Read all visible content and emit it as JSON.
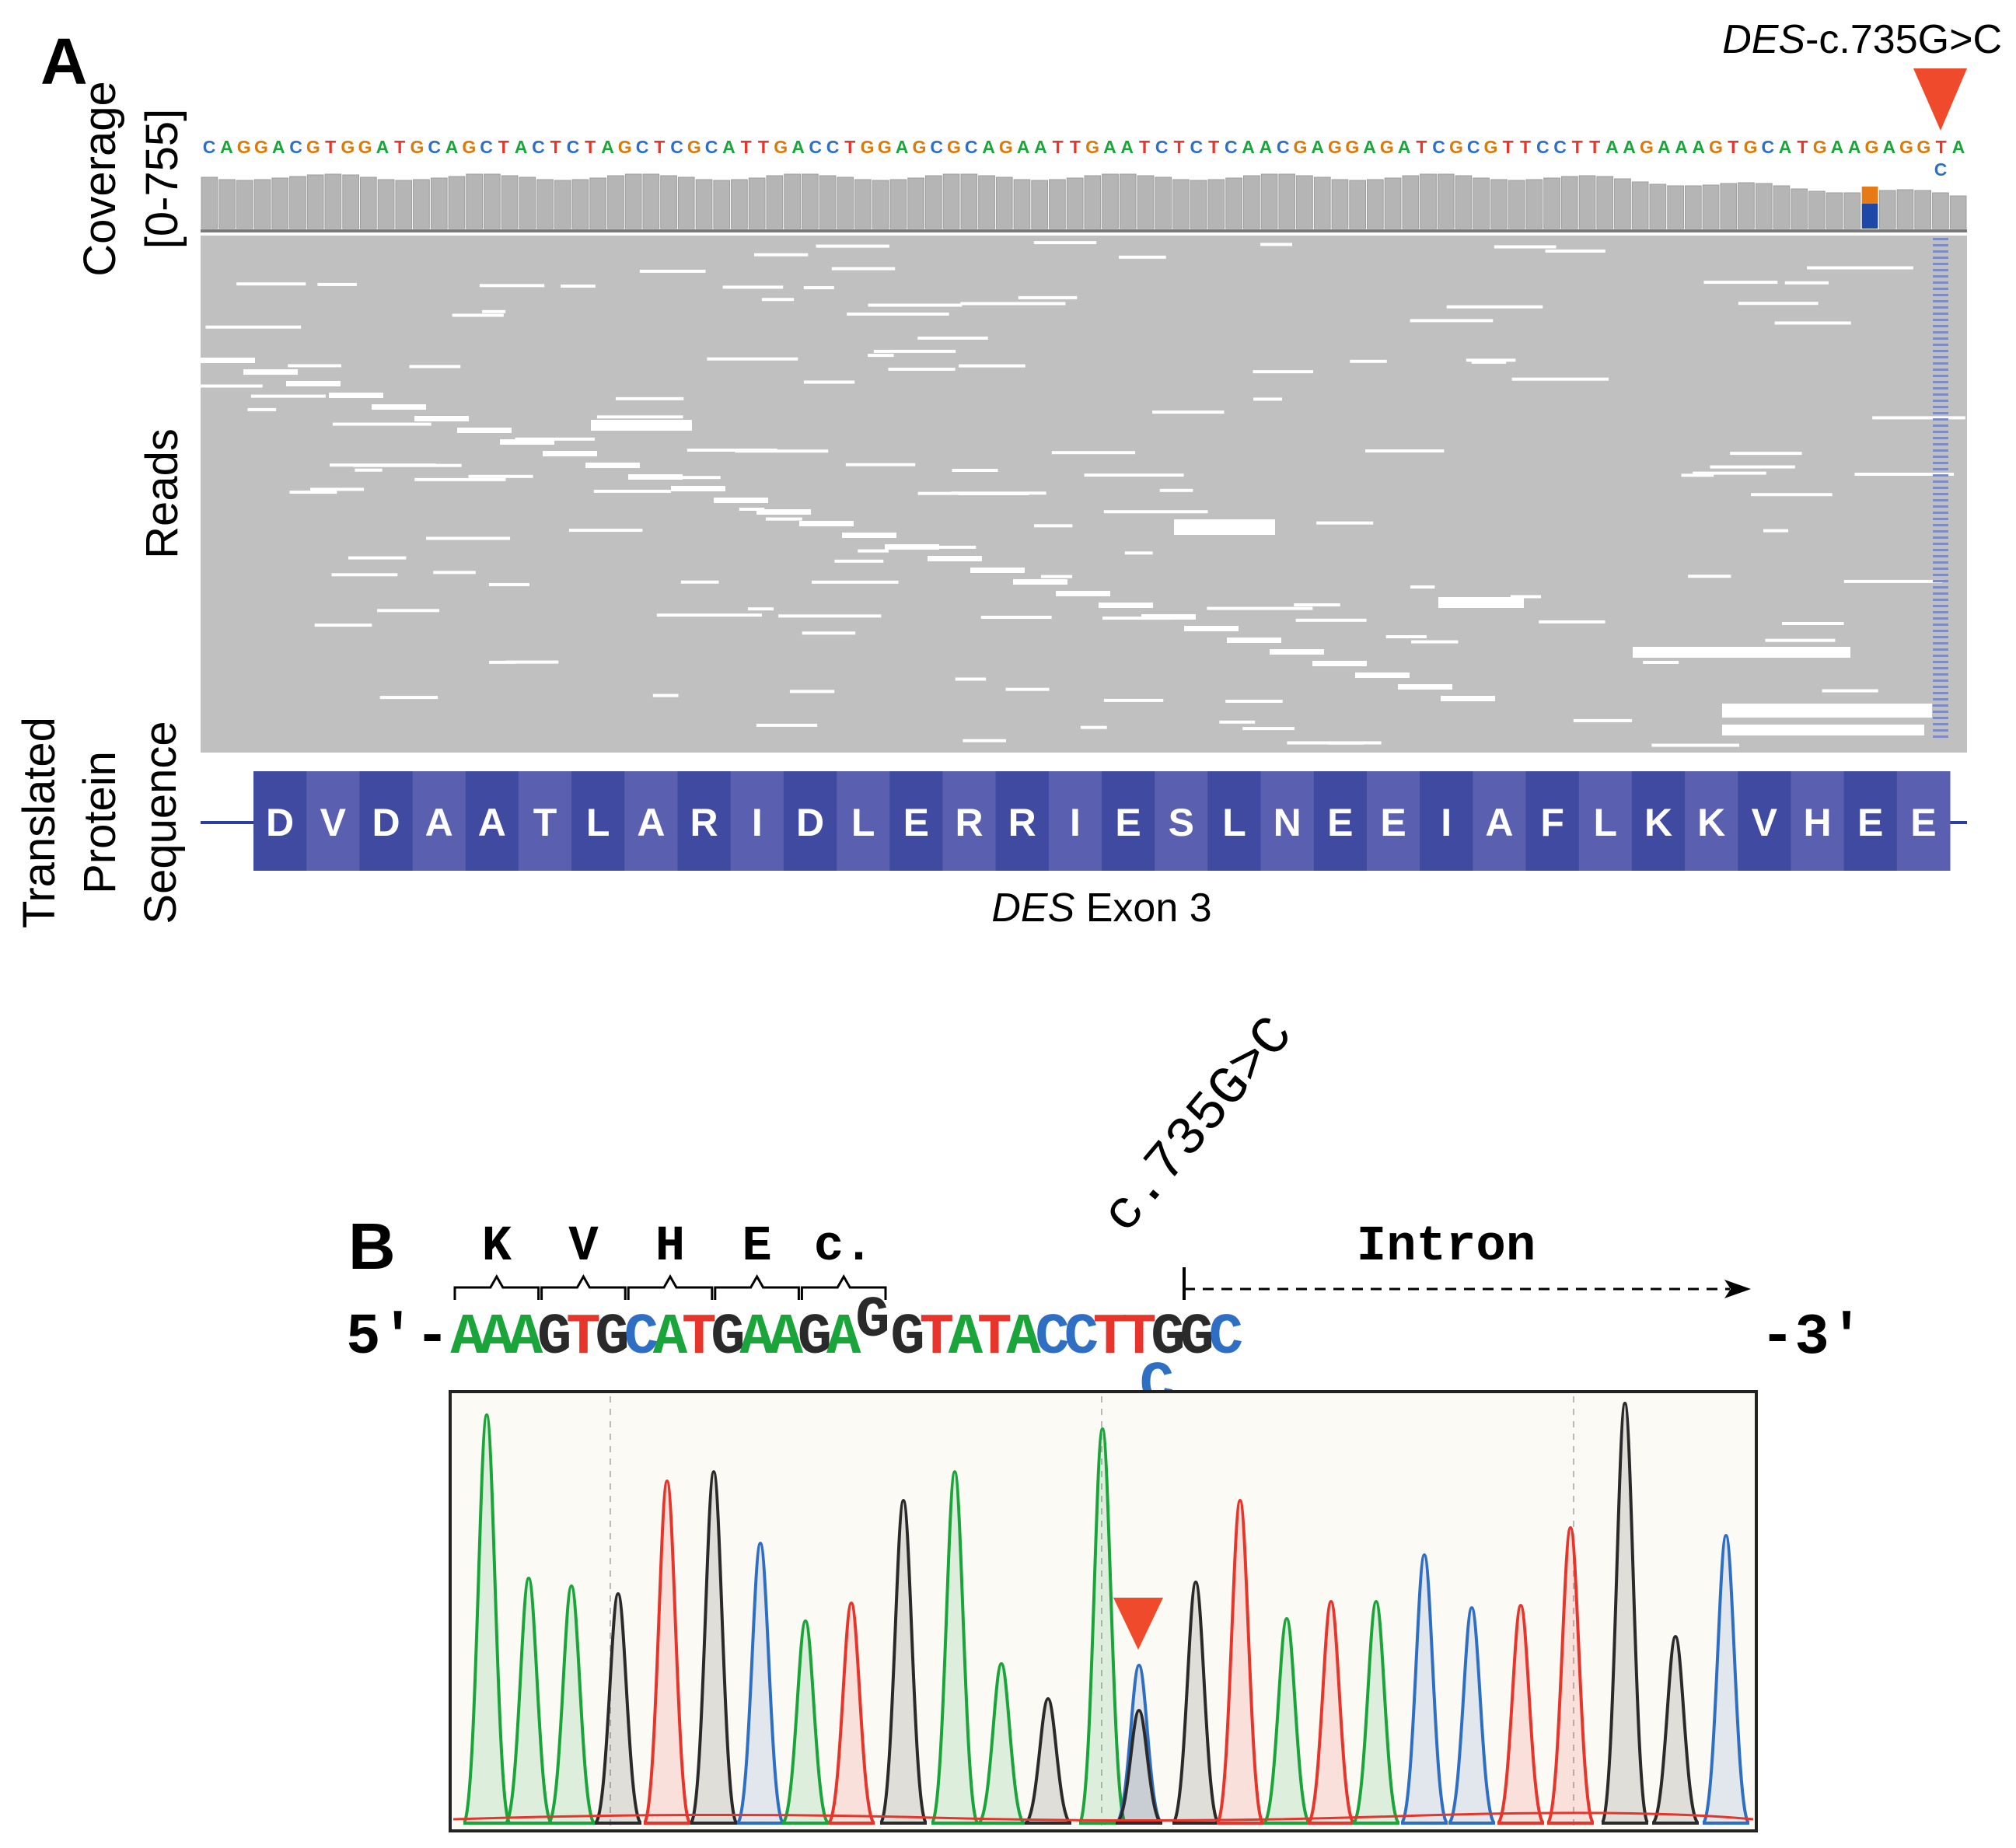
{
  "panel_a": {
    "letter": "A",
    "variant_prefix": "DES",
    "variant_suffix": "-c.735G>C",
    "coverage_label": "Coverage",
    "coverage_range": "[0-755]",
    "reads_label": "Reads",
    "protein_label_1": "Translated",
    "protein_label_2": "Protein",
    "protein_label_3": "Sequence",
    "reference_sequence": "CAGGACGTGGATGCAGCTACTCTAGCTCGCATTGACCTGGAGCGCAGAATTGAATCTCTCAACGAGGAGATCGCGTTCCTTAAGAAAGTGCATGAAGAGGTA",
    "alt_base": "C",
    "amino_acids": [
      "D",
      "V",
      "D",
      "A",
      "A",
      "T",
      "L",
      "A",
      "R",
      "I",
      "D",
      "L",
      "E",
      "R",
      "R",
      "I",
      "E",
      "S",
      "L",
      "N",
      "E",
      "E",
      "I",
      "A",
      "F",
      "L",
      "K",
      "K",
      "V",
      "H",
      "E",
      "E"
    ],
    "exon_prefix": "DES",
    "exon_suffix": " Exon 3"
  },
  "panel_b": {
    "letter": "B",
    "variant_label": "c.735G>C",
    "codons": [
      "K",
      "V",
      "H",
      "E",
      "c."
    ],
    "intron_label": "Intron",
    "five_prime": "5'-",
    "three_prime": "-3'",
    "bases": [
      "A",
      "A",
      "A",
      "G",
      "T",
      "G",
      "C",
      "A",
      "T",
      "G",
      "A",
      "A",
      "G",
      "A",
      "G",
      "G",
      "T",
      "A",
      "T",
      "A",
      "C",
      "C",
      "T",
      "T",
      "G",
      "G",
      "C"
    ],
    "alt_base": "C"
  },
  "colors": {
    "A": "#1aa53a",
    "C": "#2e6fc4",
    "G": "#2a2a2a",
    "T": "#e8352b",
    "ref_G": "#d97a0a",
    "arrow": "#f04a2d",
    "protein_dark": "#3f4aa0",
    "protein_light": "#5a5fb0",
    "read_gray": "#c0c0c0"
  }
}
